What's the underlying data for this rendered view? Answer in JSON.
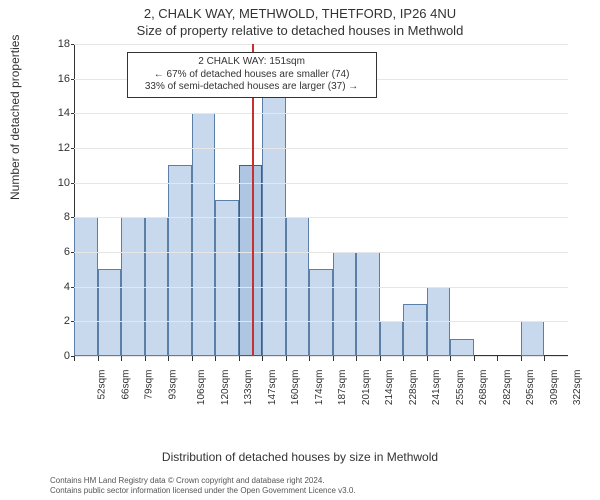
{
  "title": "2, CHALK WAY, METHWOLD, THETFORD, IP26 4NU",
  "subtitle": "Size of property relative to detached houses in Methwold",
  "y_axis_title": "Number of detached properties",
  "x_axis_title": "Distribution of detached houses by size in Methwold",
  "footer_line1": "Contains HM Land Registry data © Crown copyright and database right 2024.",
  "footer_line2": "Contains public sector information licensed under the Open Government Licence v3.0.",
  "annotation": {
    "line1": "2 CHALK WAY: 151sqm",
    "line2": "← 67% of detached houses are smaller (74)",
    "line3": "33% of semi-detached houses are larger (37) →"
  },
  "chart": {
    "type": "histogram",
    "ylim": [
      0,
      18
    ],
    "ytick_step": 2,
    "background_color": "#ffffff",
    "grid_color": "#e6e6e6",
    "bar_fill": "#c9d9ed",
    "bar_stroke": "#5b7fa6",
    "highlight_fill": "#aec6e2",
    "marker_color": "#c73030",
    "marker_x_index": 7,
    "highlight_bar_index": 7,
    "bar_width_ratio": 1.0,
    "bars": [
      {
        "label": "52sqm",
        "value": 8
      },
      {
        "label": "66sqm",
        "value": 5
      },
      {
        "label": "79sqm",
        "value": 8
      },
      {
        "label": "93sqm",
        "value": 8
      },
      {
        "label": "106sqm",
        "value": 11
      },
      {
        "label": "120sqm",
        "value": 14
      },
      {
        "label": "133sqm",
        "value": 9
      },
      {
        "label": "147sqm",
        "value": 11
      },
      {
        "label": "160sqm",
        "value": 15
      },
      {
        "label": "174sqm",
        "value": 8
      },
      {
        "label": "187sqm",
        "value": 5
      },
      {
        "label": "201sqm",
        "value": 6
      },
      {
        "label": "214sqm",
        "value": 6
      },
      {
        "label": "228sqm",
        "value": 2
      },
      {
        "label": "241sqm",
        "value": 3
      },
      {
        "label": "255sqm",
        "value": 4
      },
      {
        "label": "268sqm",
        "value": 1
      },
      {
        "label": "282sqm",
        "value": 0
      },
      {
        "label": "295sqm",
        "value": 0
      },
      {
        "label": "309sqm",
        "value": 2
      },
      {
        "label": "322sqm",
        "value": 0
      }
    ],
    "title_fontsize": 13,
    "label_fontsize": 12,
    "tick_fontsize": 10
  }
}
